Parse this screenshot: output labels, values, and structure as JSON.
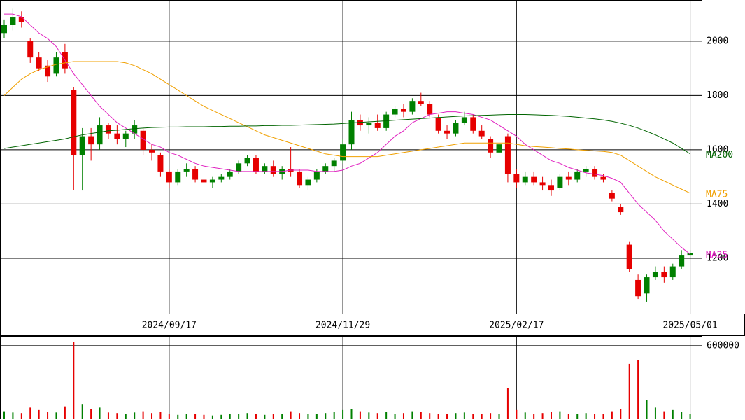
{
  "chart_data": {
    "type": "candlestick",
    "categories": [
      null,
      null,
      null,
      null,
      null,
      null,
      null,
      null,
      null,
      null,
      null,
      null,
      null,
      null,
      null,
      null,
      null,
      null,
      null,
      "2024/09/17",
      null,
      null,
      null,
      null,
      null,
      null,
      null,
      null,
      null,
      null,
      null,
      null,
      null,
      null,
      null,
      null,
      null,
      null,
      null,
      "2024/11/29",
      null,
      null,
      null,
      null,
      null,
      null,
      null,
      null,
      null,
      null,
      null,
      null,
      null,
      null,
      null,
      null,
      null,
      null,
      null,
      "2025/02/17",
      null,
      null,
      null,
      null,
      null,
      null,
      null,
      null,
      null,
      null,
      null,
      null,
      null,
      null,
      null,
      null,
      null,
      null,
      null,
      "2025/05/01"
    ],
    "open": [
      2030,
      2060,
      2090,
      2000,
      1940,
      1910,
      1880,
      1960,
      1820,
      1580,
      1650,
      1620,
      1690,
      1660,
      1640,
      1660,
      1670,
      1600,
      1580,
      1520,
      1480,
      1520,
      1530,
      1490,
      1480,
      1490,
      1500,
      1520,
      1550,
      1570,
      1520,
      1540,
      1510,
      1530,
      1520,
      1470,
      1490,
      1520,
      1540,
      1560,
      1620,
      1710,
      1690,
      1700,
      1680,
      1730,
      1750,
      1740,
      1780,
      1770,
      1720,
      1670,
      1660,
      1700,
      1720,
      1670,
      1640,
      1590,
      1650,
      1510,
      1480,
      1500,
      1480,
      1470,
      1460,
      1500,
      1490,
      1520,
      1530,
      1500,
      1440,
      1390,
      1250,
      1120,
      1070,
      1130,
      1150,
      1130,
      1170,
      1210
    ],
    "high": [
      2080,
      2120,
      2110,
      2010,
      1960,
      1930,
      1960,
      1990,
      1830,
      1680,
      1680,
      1720,
      1700,
      1690,
      1670,
      1710,
      1680,
      1620,
      1590,
      1530,
      1530,
      1550,
      1540,
      1510,
      1500,
      1510,
      1530,
      1560,
      1580,
      1580,
      1550,
      1560,
      1540,
      1610,
      1530,
      1500,
      1530,
      1550,
      1570,
      1640,
      1740,
      1730,
      1720,
      1730,
      1740,
      1760,
      1770,
      1790,
      1810,
      1780,
      1730,
      1690,
      1710,
      1740,
      1730,
      1690,
      1650,
      1640,
      1660,
      1530,
      1520,
      1520,
      1500,
      1490,
      1510,
      1520,
      1530,
      1540,
      1540,
      1510,
      1450,
      1400,
      1260,
      1140,
      1140,
      1170,
      1170,
      1180,
      1230,
      1230
    ],
    "low": [
      2010,
      2040,
      2050,
      1920,
      1890,
      1850,
      1870,
      1880,
      1450,
      1450,
      1560,
      1600,
      1640,
      1620,
      1610,
      1640,
      1580,
      1560,
      1500,
      1460,
      1470,
      1500,
      1480,
      1470,
      1460,
      1480,
      1490,
      1510,
      1540,
      1510,
      1510,
      1500,
      1490,
      1500,
      1460,
      1450,
      1480,
      1510,
      1520,
      1550,
      1600,
      1670,
      1660,
      1670,
      1670,
      1720,
      1720,
      1730,
      1760,
      1720,
      1660,
      1640,
      1650,
      1690,
      1660,
      1640,
      1570,
      1580,
      1480,
      1460,
      1470,
      1470,
      1450,
      1430,
      1450,
      1470,
      1480,
      1500,
      1490,
      1480,
      1410,
      1360,
      1150,
      1050,
      1040,
      1120,
      1110,
      1120,
      1160,
      1200
    ],
    "close": [
      2060,
      2090,
      2070,
      1940,
      1900,
      1870,
      1940,
      1900,
      1580,
      1650,
      1620,
      1690,
      1660,
      1640,
      1660,
      1690,
      1600,
      1590,
      1520,
      1480,
      1520,
      1530,
      1490,
      1480,
      1490,
      1500,
      1520,
      1550,
      1570,
      1520,
      1540,
      1510,
      1530,
      1520,
      1470,
      1490,
      1520,
      1540,
      1560,
      1620,
      1710,
      1690,
      1700,
      1680,
      1730,
      1750,
      1740,
      1780,
      1770,
      1730,
      1670,
      1660,
      1700,
      1720,
      1670,
      1650,
      1590,
      1620,
      1510,
      1480,
      1500,
      1480,
      1470,
      1450,
      1500,
      1490,
      1520,
      1530,
      1500,
      1490,
      1420,
      1370,
      1160,
      1060,
      1130,
      1150,
      1130,
      1170,
      1210,
      1220
    ],
    "volume": [
      60000,
      50000,
      45000,
      90000,
      70000,
      55000,
      50000,
      100000,
      630000,
      120000,
      80000,
      90000,
      50000,
      45000,
      40000,
      50000,
      60000,
      45000,
      55000,
      35000,
      30000,
      40000,
      35000,
      30000,
      25000,
      30000,
      35000,
      40000,
      45000,
      35000,
      30000,
      40000,
      35000,
      60000,
      45000,
      35000,
      40000,
      45000,
      55000,
      70000,
      80000,
      60000,
      50000,
      45000,
      55000,
      40000,
      45000,
      60000,
      55000,
      45000,
      40000,
      35000,
      45000,
      50000,
      40000,
      35000,
      45000,
      40000,
      250000,
      70000,
      50000,
      40000,
      45000,
      55000,
      60000,
      40000,
      35000,
      45000,
      40000,
      35000,
      60000,
      80000,
      450000,
      480000,
      150000,
      90000,
      60000,
      70000,
      55000,
      40000
    ],
    "up_color": "#008000",
    "down_color": "#e60000",
    "ma": [
      {
        "name": "MA25",
        "color": "#e020c0",
        "values": [
          2100,
          2100,
          2090,
          2060,
          2030,
          2010,
          1980,
          1930,
          1880,
          1840,
          1800,
          1760,
          1730,
          1700,
          1680,
          1660,
          1640,
          1620,
          1610,
          1590,
          1580,
          1565,
          1550,
          1540,
          1535,
          1530,
          1525,
          1520,
          1520,
          1520,
          1520,
          1520,
          1520,
          1525,
          1525,
          1525,
          1520,
          1520,
          1520,
          1525,
          1540,
          1550,
          1570,
          1590,
          1620,
          1650,
          1670,
          1700,
          1715,
          1730,
          1735,
          1740,
          1740,
          1735,
          1730,
          1720,
          1710,
          1690,
          1670,
          1650,
          1620,
          1600,
          1580,
          1560,
          1550,
          1535,
          1525,
          1515,
          1510,
          1505,
          1495,
          1480,
          1440,
          1400,
          1370,
          1340,
          1300,
          1270,
          1240,
          1215
        ]
      },
      {
        "name": "MA75",
        "color": "#f0a000",
        "values": [
          1800,
          1830,
          1860,
          1880,
          1895,
          1905,
          1915,
          1920,
          1925,
          1925,
          1925,
          1925,
          1925,
          1925,
          1920,
          1910,
          1895,
          1880,
          1860,
          1840,
          1820,
          1800,
          1780,
          1760,
          1745,
          1730,
          1715,
          1700,
          1685,
          1670,
          1655,
          1645,
          1635,
          1625,
          1615,
          1605,
          1595,
          1585,
          1580,
          1575,
          1575,
          1575,
          1575,
          1575,
          1580,
          1585,
          1590,
          1595,
          1600,
          1605,
          1610,
          1615,
          1620,
          1625,
          1625,
          1625,
          1625,
          1625,
          1625,
          1620,
          1615,
          1612,
          1610,
          1608,
          1605,
          1603,
          1600,
          1598,
          1596,
          1594,
          1590,
          1580,
          1560,
          1540,
          1520,
          1500,
          1485,
          1470,
          1455,
          1440
        ]
      },
      {
        "name": "MA200",
        "color": "#006400",
        "values": [
          1605,
          1610,
          1615,
          1620,
          1625,
          1630,
          1635,
          1640,
          1648,
          1655,
          1660,
          1665,
          1670,
          1672,
          1675,
          1678,
          1680,
          1682,
          1683,
          1684,
          1684,
          1685,
          1685,
          1685,
          1686,
          1686,
          1687,
          1687,
          1688,
          1688,
          1689,
          1689,
          1690,
          1690,
          1691,
          1692,
          1693,
          1694,
          1695,
          1697,
          1699,
          1701,
          1703,
          1705,
          1707,
          1709,
          1711,
          1713,
          1715,
          1717,
          1719,
          1721,
          1723,
          1725,
          1726,
          1727,
          1728,
          1729,
          1730,
          1730,
          1730,
          1729,
          1728,
          1727,
          1725,
          1723,
          1720,
          1717,
          1714,
          1710,
          1705,
          1698,
          1690,
          1680,
          1668,
          1655,
          1640,
          1625,
          1605,
          1585
        ]
      }
    ],
    "ylim": [
      996,
      2152
    ],
    "yticks": [
      1200,
      1400,
      1600,
      1800,
      2000
    ],
    "volume_ylim": [
      0,
      680000
    ],
    "volume_yticks": [
      600000
    ],
    "grid": true
  }
}
